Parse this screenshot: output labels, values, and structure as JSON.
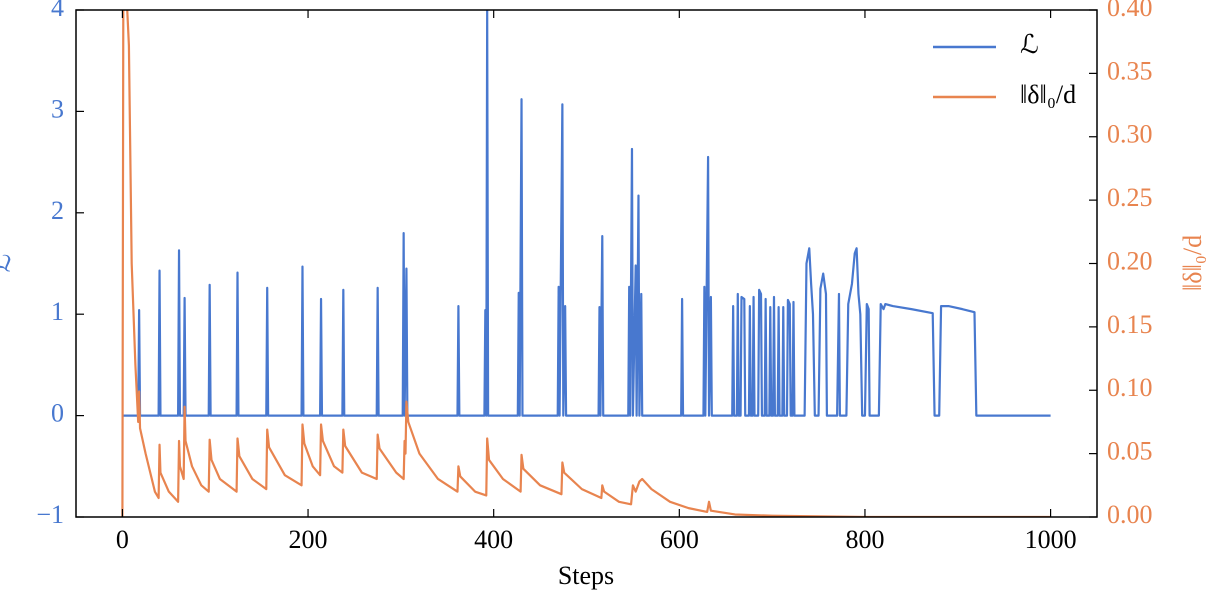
{
  "chart_data": {
    "type": "line",
    "xlabel": "Steps",
    "ylabel": "ℒ",
    "y2label": "‖δ‖₀/d",
    "xlim": [
      -50,
      1050
    ],
    "xticks": [
      0,
      200,
      400,
      600,
      800,
      1000
    ],
    "ylim": [
      -1,
      4
    ],
    "yticks": [
      {
        "value": -1,
        "label": "−1"
      },
      0,
      1,
      2,
      3,
      4
    ],
    "y2lim": [
      0,
      0.4
    ],
    "y2ticks": [
      {
        "value": 0,
        "label": "0.00"
      },
      {
        "value": 0.05,
        "label": "0.05"
      },
      {
        "value": 0.1,
        "label": "0.10"
      },
      {
        "value": 0.15,
        "label": "0.15"
      },
      {
        "value": 0.2,
        "label": "0.20"
      },
      {
        "value": 0.25,
        "label": "0.25"
      },
      {
        "value": 0.3,
        "label": "0.30"
      },
      {
        "value": 0.35,
        "label": "0.35"
      },
      {
        "value": 0.4,
        "label": "0.40"
      }
    ],
    "legend": "upper right",
    "grid": false,
    "series": [
      {
        "name": "ℒ",
        "color": "#4878cf",
        "axis": "y",
        "x": [
          0,
          17,
          18,
          19,
          39,
          40,
          41,
          60,
          61,
          62,
          66,
          67,
          68,
          93,
          94,
          95,
          123,
          124,
          125,
          155,
          156,
          157,
          193,
          194,
          195,
          213,
          214,
          215,
          237,
          238,
          239,
          274,
          275,
          276,
          302,
          303,
          304,
          306,
          307,
          361,
          362,
          363,
          390,
          391,
          392,
          393,
          394,
          426,
          427,
          428,
          430,
          431,
          469,
          470,
          471,
          474,
          475,
          477,
          478,
          513,
          514,
          515,
          517,
          518,
          545,
          546,
          547,
          549,
          550,
          553,
          554,
          556,
          557,
          559,
          560,
          602,
          603,
          604,
          626,
          627,
          628,
          631,
          632,
          634,
          635,
          657,
          658,
          659,
          662,
          663,
          664,
          666,
          667,
          670,
          671,
          675,
          676,
          677,
          679,
          680,
          681,
          685,
          686,
          688,
          689,
          692,
          693,
          694,
          697,
          698,
          699,
          701,
          702,
          703,
          706,
          707,
          708,
          711,
          712,
          713,
          716,
          717,
          719,
          720,
          722,
          723,
          724,
          735,
          737,
          740,
          742,
          744,
          746,
          750,
          752,
          755,
          758,
          759,
          770,
          772,
          773,
          780,
          782,
          786,
          789,
          791,
          793,
          795,
          797,
          800,
          802,
          804,
          805,
          815,
          817,
          820,
          822,
          830,
          850,
          873,
          875,
          880,
          882,
          890,
          905,
          918,
          920,
          1000
        ],
        "values": [
          0,
          0,
          1.04,
          0,
          0,
          1.43,
          0,
          0,
          1.63,
          0,
          0,
          1.16,
          0,
          0,
          1.29,
          0,
          0,
          1.41,
          0,
          0,
          1.26,
          0,
          0,
          1.47,
          0,
          0,
          1.15,
          0,
          0,
          1.24,
          0,
          0,
          1.26,
          0,
          0,
          1.8,
          0,
          1.45,
          0,
          0,
          1.08,
          0,
          0,
          1.04,
          0,
          4,
          0,
          0,
          1.21,
          0,
          3.12,
          0,
          0,
          1.27,
          0,
          3.07,
          0,
          1.08,
          0,
          0,
          1.07,
          0,
          1.77,
          0,
          0,
          1.27,
          0,
          2.63,
          0,
          1.48,
          0,
          2.17,
          0,
          1.2,
          0,
          0,
          1.15,
          0,
          0,
          1.27,
          0,
          2.55,
          0,
          1.17,
          0,
          0,
          1.08,
          0,
          0,
          1.2,
          0,
          0,
          1.17,
          1.15,
          0,
          0,
          1.08,
          0,
          0,
          1.17,
          0,
          0,
          1.24,
          1.2,
          0,
          0,
          1.15,
          0,
          0,
          1.07,
          0,
          0,
          1.17,
          0,
          0,
          1.07,
          0,
          0,
          1.07,
          0,
          0,
          1.14,
          1.1,
          0,
          0,
          1.12,
          0,
          0,
          1.5,
          1.65,
          1.3,
          1.0,
          0,
          0,
          1.25,
          1.4,
          1.2,
          0,
          0,
          1.2,
          0,
          0,
          1.1,
          1.3,
          1.6,
          1.65,
          1.2,
          1.0,
          0,
          0,
          1.1,
          1.05,
          0,
          0,
          1.1,
          1.05,
          1.1,
          1.08,
          1.05,
          1.01,
          0,
          0,
          1.08,
          1.08,
          1.05,
          1.02,
          0,
          0
        ]
      },
      {
        "name": "‖δ‖₀/d",
        "color": "#e8844f",
        "axis": "y2",
        "x": [
          0,
          1,
          2,
          7,
          10,
          14,
          17,
          18,
          19,
          25,
          35,
          39,
          40,
          41,
          50,
          60,
          61,
          62,
          66,
          67,
          68,
          75,
          85,
          93,
          94,
          96,
          105,
          123,
          124,
          126,
          140,
          155,
          156,
          158,
          175,
          193,
          194,
          196,
          205,
          213,
          214,
          216,
          228,
          237,
          238,
          240,
          258,
          274,
          275,
          277,
          295,
          303,
          304,
          305,
          306,
          308,
          320,
          340,
          361,
          362,
          364,
          380,
          392,
          393,
          395,
          410,
          429,
          430,
          432,
          450,
          473,
          474,
          476,
          495,
          516,
          517,
          519,
          535,
          548,
          550,
          553,
          557,
          560,
          570,
          590,
          610,
          630,
          632,
          634,
          660,
          700,
          750,
          800,
          1000
        ],
        "values": [
          0,
          0.42,
          0.45,
          0.372,
          0.2,
          0.12,
          0.075,
          0.099,
          0.07,
          0.05,
          0.02,
          0.015,
          0.057,
          0.035,
          0.02,
          0.012,
          0.06,
          0.04,
          0.03,
          0.087,
          0.06,
          0.04,
          0.025,
          0.02,
          0.061,
          0.045,
          0.03,
          0.02,
          0.062,
          0.048,
          0.03,
          0.022,
          0.069,
          0.055,
          0.033,
          0.025,
          0.073,
          0.058,
          0.04,
          0.033,
          0.073,
          0.06,
          0.04,
          0.035,
          0.069,
          0.056,
          0.035,
          0.03,
          0.065,
          0.054,
          0.035,
          0.03,
          0.06,
          0.05,
          0.091,
          0.075,
          0.05,
          0.03,
          0.02,
          0.04,
          0.032,
          0.02,
          0.017,
          0.062,
          0.045,
          0.03,
          0.02,
          0.049,
          0.038,
          0.025,
          0.018,
          0.043,
          0.035,
          0.022,
          0.015,
          0.025,
          0.02,
          0.012,
          0.01,
          0.025,
          0.02,
          0.028,
          0.03,
          0.022,
          0.012,
          0.007,
          0.004,
          0.012,
          0.005,
          0.002,
          0.001,
          0.0005,
          0,
          0
        ]
      }
    ]
  }
}
